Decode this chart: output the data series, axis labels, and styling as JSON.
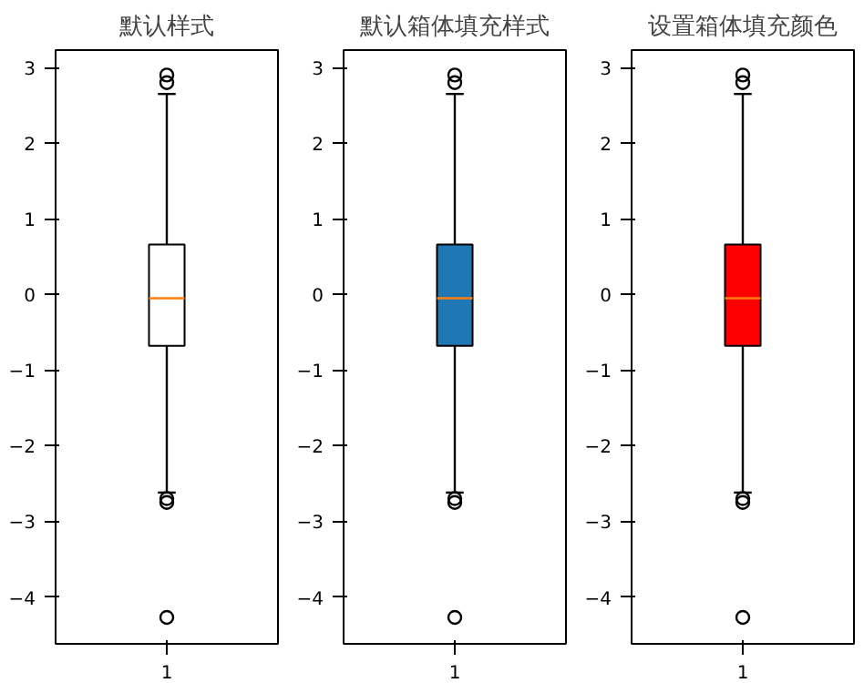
{
  "chart_data": [
    {
      "type": "box",
      "title": "默认样式",
      "categories": [
        "1"
      ],
      "color": "#ffffff",
      "boxes": [
        {
          "low": -2.62,
          "q1": -0.68,
          "median": -0.05,
          "q3": 0.66,
          "high": 2.65,
          "outliers": [
            2.9,
            2.8,
            -2.7,
            -2.75,
            -4.27
          ]
        }
      ],
      "ylim": [
        -4.62,
        3.23
      ],
      "yticks": [
        -4,
        -3,
        -2,
        -1,
        0,
        1,
        2,
        3
      ],
      "grid": false
    },
    {
      "type": "box",
      "title": "默认箱体填充样式",
      "categories": [
        "1"
      ],
      "color": "#1f77b4",
      "boxes": [
        {
          "low": -2.62,
          "q1": -0.68,
          "median": -0.05,
          "q3": 0.66,
          "high": 2.65,
          "outliers": [
            2.9,
            2.8,
            -2.7,
            -2.75,
            -4.27
          ]
        }
      ],
      "ylim": [
        -4.62,
        3.23
      ],
      "yticks": [
        -4,
        -3,
        -2,
        -1,
        0,
        1,
        2,
        3
      ],
      "grid": false
    },
    {
      "type": "box",
      "title": "设置箱体填充颜色",
      "categories": [
        "1"
      ],
      "color": "#ff0000",
      "boxes": [
        {
          "low": -2.62,
          "q1": -0.68,
          "median": -0.05,
          "q3": 0.66,
          "high": 2.65,
          "outliers": [
            2.9,
            2.8,
            -2.7,
            -2.75,
            -4.27
          ]
        }
      ],
      "ylim": [
        -4.62,
        3.23
      ],
      "yticks": [
        -4,
        -3,
        -2,
        -1,
        0,
        1,
        2,
        3
      ],
      "grid": false
    }
  ]
}
